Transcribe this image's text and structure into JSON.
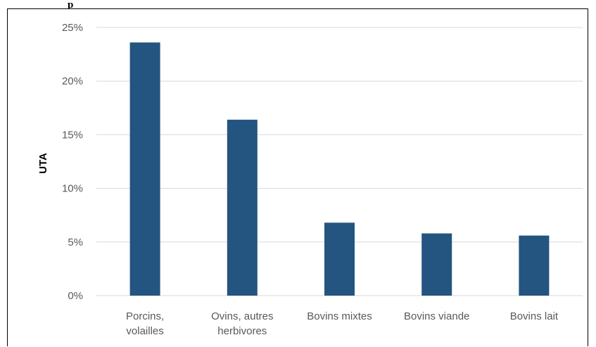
{
  "caption": {
    "text": "p"
  },
  "colors": {
    "bar": "#245480",
    "grid": "#d9d9d9",
    "tick_text": "#595959"
  },
  "chart_data": {
    "type": "bar",
    "title": "",
    "xlabel": "",
    "ylabel": "UTA",
    "ylim": [
      0,
      25
    ],
    "yticks": [
      0,
      5,
      10,
      15,
      20,
      25
    ],
    "ytick_labels": [
      "0%",
      "5%",
      "10%",
      "15%",
      "20%",
      "25%"
    ],
    "y_unit": "%",
    "grid": true,
    "legend": "none",
    "categories": [
      [
        "Porcins,",
        "volailles"
      ],
      [
        "Ovins, autres",
        "herbivores"
      ],
      [
        "Bovins mixtes"
      ],
      [
        "Bovins viande"
      ],
      [
        "Bovins lait"
      ]
    ],
    "values": [
      23.6,
      16.4,
      6.8,
      5.8,
      5.6
    ]
  }
}
